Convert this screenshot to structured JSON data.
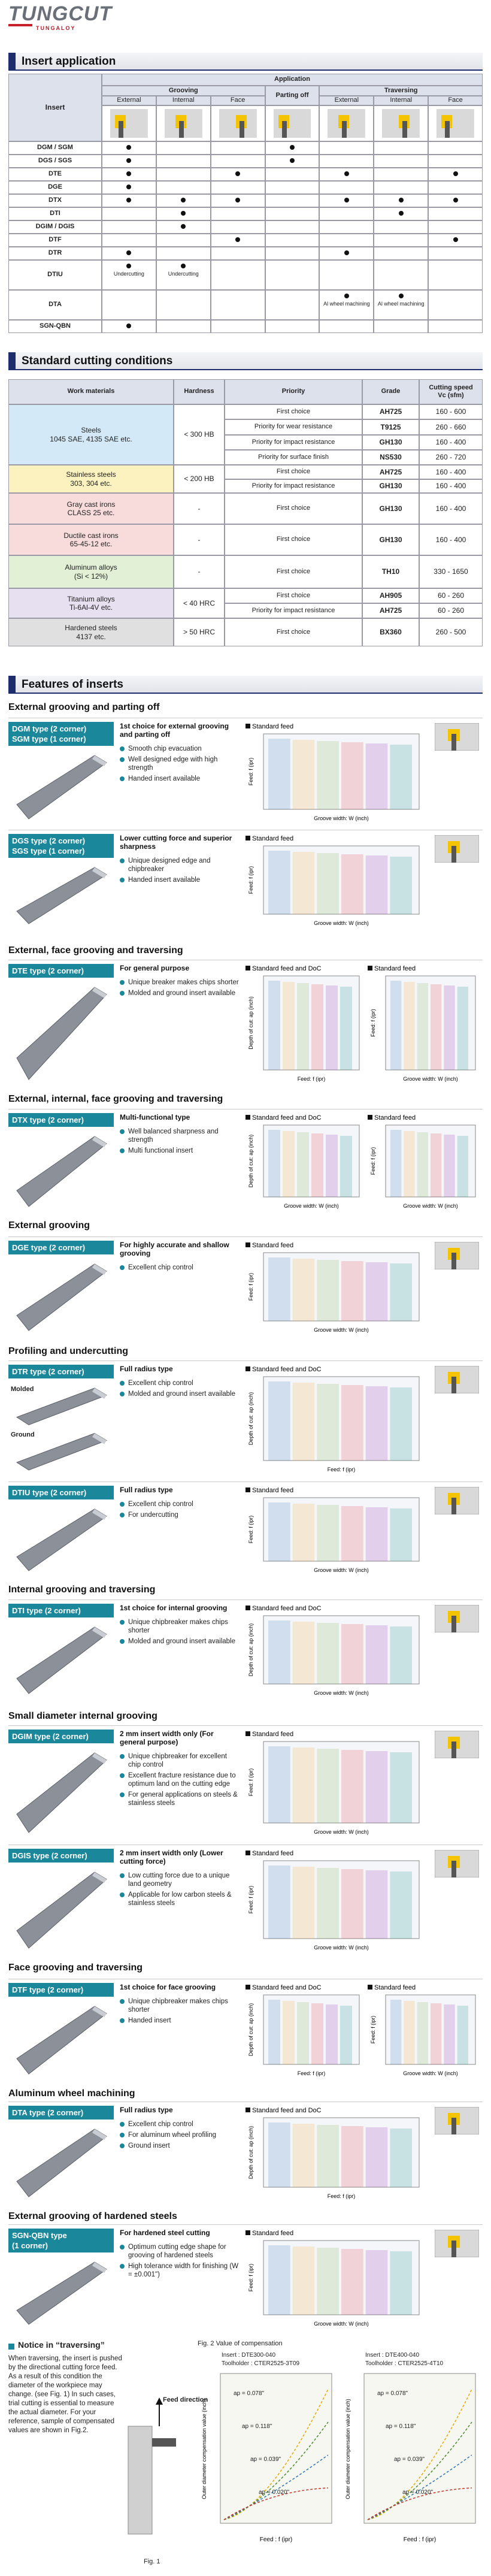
{
  "header": {
    "logo": "TUNGCUT",
    "brand": "TUNGALOY"
  },
  "application": {
    "title": "Insert application",
    "columns": {
      "insert": "Insert",
      "application": "Application",
      "grooving": "Grooving",
      "parting_off": "Parting off",
      "traversing": "Traversing",
      "sub": [
        "External",
        "Internal",
        "Face",
        "External",
        "Internal",
        "Face"
      ]
    },
    "rows": [
      {
        "insert": "DGM / SGM",
        "marks": [
          true,
          false,
          false,
          true,
          false,
          false,
          false
        ],
        "notes": [
          null,
          null,
          null,
          null,
          null,
          null,
          null
        ]
      },
      {
        "insert": "DGS / SGS",
        "marks": [
          true,
          false,
          false,
          true,
          false,
          false,
          false
        ],
        "notes": [
          null,
          null,
          null,
          null,
          null,
          null,
          null
        ]
      },
      {
        "insert": "DTE",
        "marks": [
          true,
          false,
          true,
          false,
          true,
          false,
          true
        ],
        "notes": [
          null,
          null,
          null,
          null,
          null,
          null,
          null
        ]
      },
      {
        "insert": "DGE",
        "marks": [
          true,
          false,
          false,
          false,
          false,
          false,
          false
        ],
        "notes": [
          null,
          null,
          null,
          null,
          null,
          null,
          null
        ]
      },
      {
        "insert": "DTX",
        "marks": [
          true,
          true,
          true,
          false,
          true,
          true,
          true
        ],
        "notes": [
          null,
          null,
          null,
          null,
          null,
          null,
          null
        ]
      },
      {
        "insert": "DTI",
        "marks": [
          false,
          true,
          false,
          false,
          false,
          true,
          false
        ],
        "notes": [
          null,
          null,
          null,
          null,
          null,
          null,
          null
        ]
      },
      {
        "insert": "DGIM / DGIS",
        "marks": [
          false,
          true,
          false,
          false,
          false,
          false,
          false
        ],
        "notes": [
          null,
          null,
          null,
          null,
          null,
          null,
          null
        ]
      },
      {
        "insert": "DTF",
        "marks": [
          false,
          false,
          true,
          false,
          false,
          false,
          true
        ],
        "notes": [
          null,
          null,
          null,
          null,
          null,
          null,
          null
        ]
      },
      {
        "insert": "DTR",
        "marks": [
          true,
          false,
          false,
          false,
          true,
          false,
          false
        ],
        "notes": [
          null,
          null,
          null,
          null,
          null,
          null,
          null
        ]
      },
      {
        "insert": "DTIU",
        "marks": [
          true,
          true,
          false,
          false,
          false,
          false,
          false
        ],
        "notes": [
          "Undercutting",
          "Undercutting",
          null,
          null,
          null,
          null,
          null
        ]
      },
      {
        "insert": "DTA",
        "marks": [
          false,
          false,
          false,
          false,
          true,
          true,
          false
        ],
        "notes": [
          null,
          null,
          null,
          null,
          "Al wheel machining",
          "Al wheel machining",
          null
        ]
      },
      {
        "insert": "SGN-QBN",
        "marks": [
          true,
          false,
          false,
          false,
          false,
          false,
          false
        ],
        "notes": [
          null,
          null,
          null,
          null,
          null,
          null,
          null
        ]
      }
    ]
  },
  "conditions": {
    "title": "Standard cutting conditions",
    "headers": {
      "material": "Work materials",
      "hardness": "Hardness",
      "priority": "Priority",
      "grade": "Grade",
      "speed": "Cutting speed",
      "speed_unit": "Vc (sfm)"
    },
    "groups": [
      {
        "material": "Steels",
        "detail": "1045 SAE, 4135 SAE etc.",
        "hardness": "< 300 HB",
        "color": "#d3e9f7",
        "rows": [
          {
            "priority": "First choice",
            "grade": "AH725",
            "speed": "160 - 600"
          },
          {
            "priority": "Priority for wear resistance",
            "grade": "T9125",
            "speed": "260 - 660"
          },
          {
            "priority": "Priority for impact resistance",
            "grade": "GH130",
            "speed": "160 - 400"
          },
          {
            "priority": "Priority for surface finish",
            "grade": "NS530",
            "speed": "260 - 720"
          }
        ]
      },
      {
        "material": "Stainless steels",
        "detail": "303, 304 etc.",
        "hardness": "< 200 HB",
        "color": "#fbf2bf",
        "rows": [
          {
            "priority": "First choice",
            "grade": "AH725",
            "speed": "160 - 400"
          },
          {
            "priority": "Priority for impact resistance",
            "grade": "GH130",
            "speed": "160 - 400"
          }
        ]
      },
      {
        "material": "Gray cast irons",
        "detail": "CLASS 25 etc.",
        "hardness": "-",
        "color": "#f8dcdc",
        "rows": [
          {
            "priority": "First choice",
            "grade": "GH130",
            "speed": "160 - 400"
          }
        ]
      },
      {
        "material": "Ductile cast irons",
        "detail": "65-45-12 etc.",
        "hardness": "-",
        "color": "#f8dcdc",
        "rows": [
          {
            "priority": "First choice",
            "grade": "GH130",
            "speed": "160 - 400"
          }
        ]
      },
      {
        "material": "Aluminum alloys",
        "detail": "(Si < 12%)",
        "hardness": "-",
        "color": "#e2f0d5",
        "rows": [
          {
            "priority": "First choice",
            "grade": "TH10",
            "speed": "330 - 1650"
          }
        ]
      },
      {
        "material": "Titanium alloys",
        "detail": "Ti-6Al-4V etc.",
        "hardness": "< 40 HRC",
        "color": "#e6e0f0",
        "rows": [
          {
            "priority": "First choice",
            "grade": "AH905",
            "speed": "60 - 260"
          },
          {
            "priority": "Priority for impact resistance",
            "grade": "AH725",
            "speed": "60 - 260"
          }
        ]
      },
      {
        "material": "Hardened steels",
        "detail": "4137 etc.",
        "hardness": "> 50 HRC",
        "color": "#e0e0e0",
        "rows": [
          {
            "priority": "First choice",
            "grade": "BX360",
            "speed": "260 - 500"
          }
        ]
      }
    ]
  },
  "features": {
    "title": "Features of inserts",
    "sections": [
      {
        "heading": "External grooving and parting off",
        "blocks": [
          {
            "codes": [
              "DGM type (2 corner)",
              "SGM type (1 corner)"
            ],
            "lead": "1st choice for external grooving and parting off",
            "bullets": [
              "Smooth chip evacuation",
              "Well designed edge with high strength",
              "Handed insert available"
            ],
            "labels": [],
            "charts": [
              {
                "title": "Standard feed",
                "ylabel": "Feed: f (ipr)",
                "xlabel": "Groove width: W (inch)"
              }
            ]
          },
          {
            "codes": [
              "DGS type (2 corner)",
              "SGS type (1 corner)"
            ],
            "lead": "Lower cutting force and superior sharpness",
            "bullets": [
              "Unique designed edge and chipbreaker",
              "Handed insert available"
            ],
            "labels": [],
            "charts": [
              {
                "title": "Standard feed",
                "ylabel": "Feed: f (ipr)",
                "xlabel": "Groove width: W (inch)"
              }
            ]
          }
        ]
      },
      {
        "heading": "External, face grooving and traversing",
        "blocks": [
          {
            "codes": [
              "DTE type (2 corner)"
            ],
            "lead": "For general purpose",
            "bullets": [
              "Unique breaker makes chips shorter",
              "Molded and ground insert available"
            ],
            "labels": [],
            "charts": [
              {
                "title": "Standard feed and DoC",
                "ylabel": "Depth of cut: ap (inch)",
                "xlabel": "Feed: f (ipr)"
              },
              {
                "title": "Standard feed",
                "ylabel": "Feed: f (ipr)",
                "xlabel": "Groove width: W (inch)"
              }
            ]
          }
        ]
      },
      {
        "heading": "External, internal, face grooving and traversing",
        "blocks": [
          {
            "codes": [
              "DTX type (2 corner)"
            ],
            "lead": "Multi-functional type",
            "bullets": [
              "Well balanced sharpness and strength",
              "Multi functional insert"
            ],
            "labels": [],
            "charts": [
              {
                "title": "Standard feed and DoC",
                "ylabel": "Depth of cut: ap (inch)",
                "xlabel": "Groove width: W (inch)"
              },
              {
                "title": "Standard feed",
                "ylabel": "Feed: f (ipr)",
                "xlabel": "Groove width: W (inch)"
              }
            ]
          }
        ]
      },
      {
        "heading": "External grooving",
        "blocks": [
          {
            "codes": [
              "DGE type (2 corner)"
            ],
            "lead": "For highly accurate and shallow grooving",
            "bullets": [
              "Excellent chip control"
            ],
            "labels": [],
            "charts": [
              {
                "title": "Standard feed",
                "ylabel": "Feed: f (ipr)",
                "xlabel": "Groove width: W (inch)"
              }
            ]
          }
        ]
      },
      {
        "heading": "Profiling and undercutting",
        "blocks": [
          {
            "codes": [
              "DTR type (2 corner)"
            ],
            "lead": "Full radius type",
            "bullets": [
              "Excellent chip control",
              "Molded and ground insert available"
            ],
            "labels": [
              "Molded",
              "Ground"
            ],
            "charts": [
              {
                "title": "Standard feed and DoC",
                "ylabel": "Depth of cut: ap (inch)",
                "xlabel": "Feed: f (ipr)"
              }
            ]
          },
          {
            "codes": [
              "DTIU type (2 corner)"
            ],
            "lead": "Full radius type",
            "bullets": [
              "Excellent chip control",
              "For undercutting"
            ],
            "labels": [],
            "charts": [
              {
                "title": "Standard feed",
                "ylabel": "Feed: f (ipr)",
                "xlabel": "Groove width: W (inch)"
              }
            ]
          }
        ]
      },
      {
        "heading": "Internal grooving and traversing",
        "blocks": [
          {
            "codes": [
              "DTI type (2 corner)"
            ],
            "lead": "1st choice for internal grooving",
            "bullets": [
              "Unique chipbreaker makes chips shorter",
              "Molded and ground insert available"
            ],
            "labels": [],
            "charts": [
              {
                "title": "Standard feed and DoC",
                "ylabel": "Depth of cut: ap (inch)",
                "xlabel": "Groove width: W (inch)"
              }
            ]
          }
        ]
      },
      {
        "heading": "Small diameter internal grooving",
        "blocks": [
          {
            "codes": [
              "DGIM type (2 corner)"
            ],
            "lead": "2 mm insert width only (For general purpose)",
            "bullets": [
              "Unique chipbreaker for excellent chip control",
              "Excellent fracture resistance due to optimum land on the cutting edge",
              "For general applications on steels & stainless steels"
            ],
            "labels": [],
            "charts": [
              {
                "title": "Standard feed",
                "ylabel": "Feed: f (ipr)",
                "xlabel": "Groove width: W (inch)"
              }
            ]
          },
          {
            "codes": [
              "DGIS type (2 corner)"
            ],
            "lead": "2 mm insert width only (Lower cutting force)",
            "bullets": [
              "Low cutting force due to a unique land geometry",
              "Applicable for low carbon steels & stainless steels"
            ],
            "labels": [],
            "charts": [
              {
                "title": "Standard feed",
                "ylabel": "Feed: f (ipr)",
                "xlabel": "Groove width: W (inch)"
              }
            ]
          }
        ]
      },
      {
        "heading": "Face grooving and traversing",
        "blocks": [
          {
            "codes": [
              "DTF type (2 corner)"
            ],
            "lead": "1st choice for face grooving",
            "bullets": [
              "Unique chipbreaker makes chips shorter",
              "Handed insert"
            ],
            "labels": [],
            "charts": [
              {
                "title": "Standard feed and DoC",
                "ylabel": "Depth of cut: ap (inch)",
                "xlabel": "Feed: f (ipr)"
              },
              {
                "title": "Standard feed",
                "ylabel": "Feed: f (ipr)",
                "xlabel": "Groove width: W (inch)"
              }
            ]
          }
        ]
      },
      {
        "heading": "Aluminum wheel machining",
        "blocks": [
          {
            "codes": [
              "DTA type (2 corner)"
            ],
            "lead": "Full radius type",
            "bullets": [
              "Excellent chip control",
              "For aluminum wheel profiling",
              "Ground insert"
            ],
            "labels": [],
            "charts": [
              {
                "title": "Standard feed and DoC",
                "ylabel": "Depth of cut: ap (inch)",
                "xlabel": "Feed: f (ipr)"
              }
            ]
          }
        ]
      },
      {
        "heading": "External grooving of hardened steels",
        "blocks": [
          {
            "codes": [
              "SGN-QBN type",
              "(1 corner)"
            ],
            "lead": "For hardened steel cutting",
            "bullets": [
              "Optimum cutting edge shape for grooving of hardened steels",
              "High tolerance width for finishing (W = ±0.001\")"
            ],
            "labels": [],
            "charts": [
              {
                "title": "Standard feed",
                "ylabel": "Feed: f (ipr)",
                "xlabel": "Groove width: W (inch)"
              }
            ]
          }
        ]
      }
    ]
  },
  "notice": {
    "title": "Notice in “traversing”",
    "text": "When traversing, the insert is pushed by the directional cutting force feed. As a result of this condition the diameter of the workpiece may change. (see Fig. 1) In such cases, trial cutting is essential to measure the actual diameter. For your reference, sample of compensated values are shown in Fig.2.",
    "feed_direction": "Feed direction",
    "fig1": "Fig. 1",
    "fig2": "Fig. 2 Value of compensation",
    "panels": [
      {
        "insert": "Insert : DTE300-040",
        "holder": "Toolholder : CTER2525-3T09",
        "ap": [
          "ap = 0.078\"",
          "ap = 0.118\"",
          "ap = 0.039\"",
          "ap = 0.020\""
        ]
      },
      {
        "insert": "Insert : DTE400-040",
        "holder": "Toolholder : CTER2525-4T10",
        "ap": [
          "ap = 0.078\"",
          "ap = 0.118\"",
          "ap = 0.039\"",
          "ap = 0.020\""
        ]
      }
    ],
    "ylabel": "Outer diameter compensation value (inch)",
    "xlabel": "Feed : f (ipr)"
  }
}
